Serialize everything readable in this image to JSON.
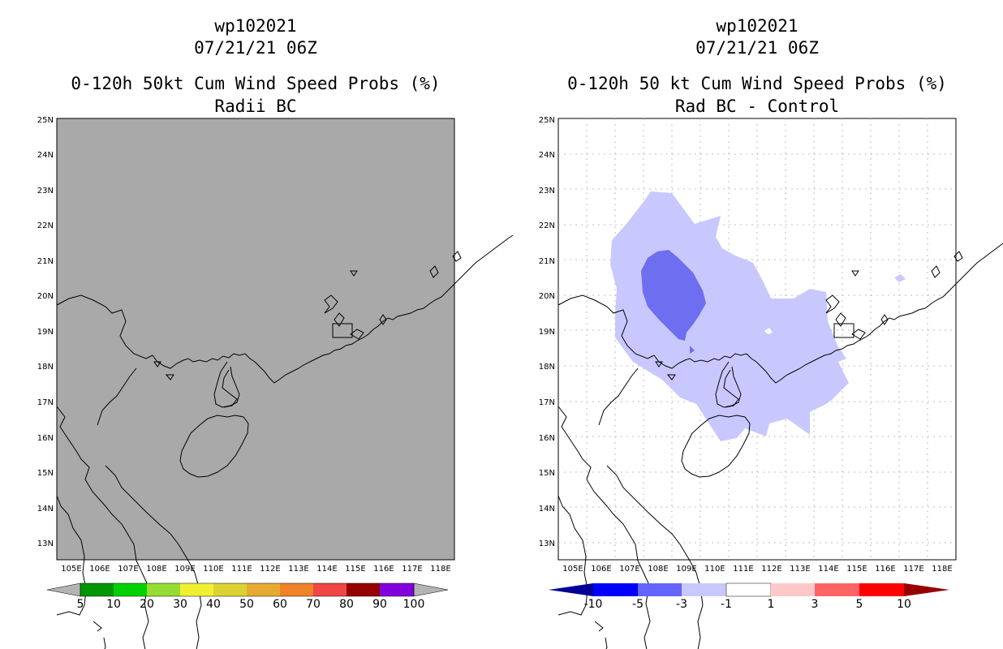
{
  "left_panel": {
    "title_line1": "wp102021",
    "title_line2": "07/21/21 06Z",
    "title_line3": "0-120h 50kt Cum Wind Speed Probs (%)",
    "title_line4": "Radii BC",
    "background_color": "#a9a9a9",
    "colorbar": {
      "labels": [
        "5",
        "10",
        "20",
        "30",
        "40",
        "50",
        "60",
        "70",
        "80",
        "90",
        "100"
      ],
      "colors": [
        "#009600",
        "#00d200",
        "#96dc32",
        "#f0f032",
        "#dcd232",
        "#e6aa32",
        "#f08228",
        "#f04646",
        "#960000",
        "#8200dc"
      ],
      "end_color": "#b4b4b4"
    }
  },
  "right_panel": {
    "title_line1": "wp102021",
    "title_line2": "07/21/21 06Z",
    "title_line3": "0-120h 50 kt Cum Wind Speed Probs (%)",
    "title_line4": "Rad BC - Control",
    "colorbar": {
      "labels": [
        "-10",
        "-5",
        "-3",
        "-1",
        "1",
        "3",
        "5",
        "10"
      ],
      "colors": [
        "#0000ff",
        "#6464ff",
        "#c8c8ff",
        "#ffffff",
        "#ffc8c8",
        "#ff6464",
        "#ff0000"
      ],
      "low_end_color": "#000096",
      "high_end_color": "#960000"
    },
    "light_fill": "#c8c8ff",
    "dark_fill": "#6e6ef0"
  },
  "axes": {
    "lat_labels": [
      "25N",
      "24N",
      "23N",
      "22N",
      "21N",
      "20N",
      "19N",
      "18N",
      "17N",
      "16N",
      "15N",
      "14N",
      "13N"
    ],
    "lon_labels": [
      "105E",
      "106E",
      "107E",
      "108E",
      "109E",
      "110E",
      "111E",
      "112E",
      "113E",
      "114E",
      "115E",
      "116E",
      "117E",
      "118E"
    ]
  }
}
